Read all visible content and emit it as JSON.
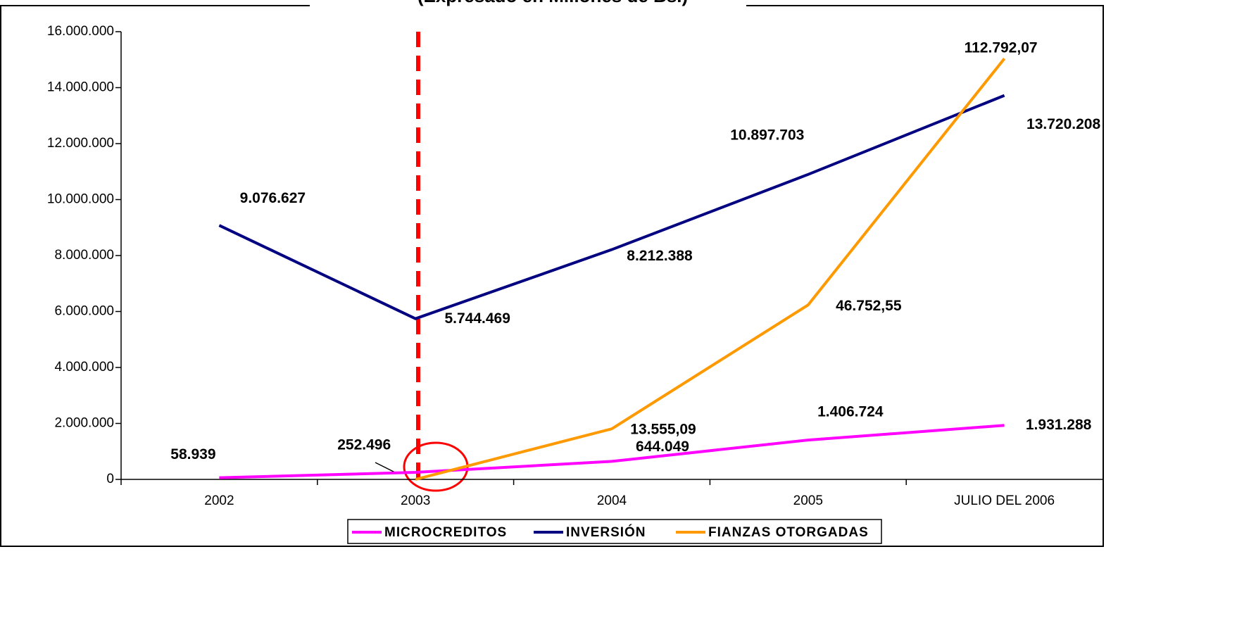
{
  "chart_data": {
    "type": "line",
    "title": "(Expresado en Millones de Bs.)",
    "categories": [
      "2002",
      "2003",
      "2004",
      "2005",
      "JULIO DEL 2006"
    ],
    "ylim": [
      0,
      16000000
    ],
    "yticks": [
      0,
      {
        "value": 2000000,
        "label": "2.000.000"
      },
      {
        "value": 4000000,
        "label": "4.000.000"
      },
      {
        "value": 6000000,
        "label": "6.000.000"
      },
      {
        "value": 8000000,
        "label": "8.000.000"
      },
      {
        "value": 10000000,
        "label": "10.000.000"
      },
      {
        "value": 12000000,
        "label": "12.000.000"
      },
      {
        "value": 14000000,
        "label": "14.000.000"
      },
      {
        "value": 16000000,
        "label": "16.000.000"
      }
    ],
    "y2lim": [
      0,
      120000
    ],
    "series": [
      {
        "name": "MICROCREDITOS",
        "color": "#ff00ff",
        "values": [
          58939,
          252496,
          644049,
          1406724,
          1931288
        ],
        "value_labels": [
          "58.939",
          "252.496",
          "644.049",
          "1.406.724",
          "1.931.288"
        ]
      },
      {
        "name": "INVERSIÓN",
        "color": "#000080",
        "values": [
          9076627,
          5744469,
          8212388,
          10897703,
          13720208
        ],
        "value_labels": [
          "9.076.627",
          "5.744.469",
          "8.212.388",
          "10.897.703",
          "13.720.208"
        ]
      },
      {
        "name": "FIANZAS OTORGADAS",
        "color": "#ff9900",
        "axis": "y2",
        "values": [
          null,
          0,
          13555.09,
          46752.55,
          112792.07
        ],
        "value_labels": [
          null,
          null,
          "13.555,09",
          "46.752,55",
          "112.792,07"
        ]
      }
    ]
  }
}
